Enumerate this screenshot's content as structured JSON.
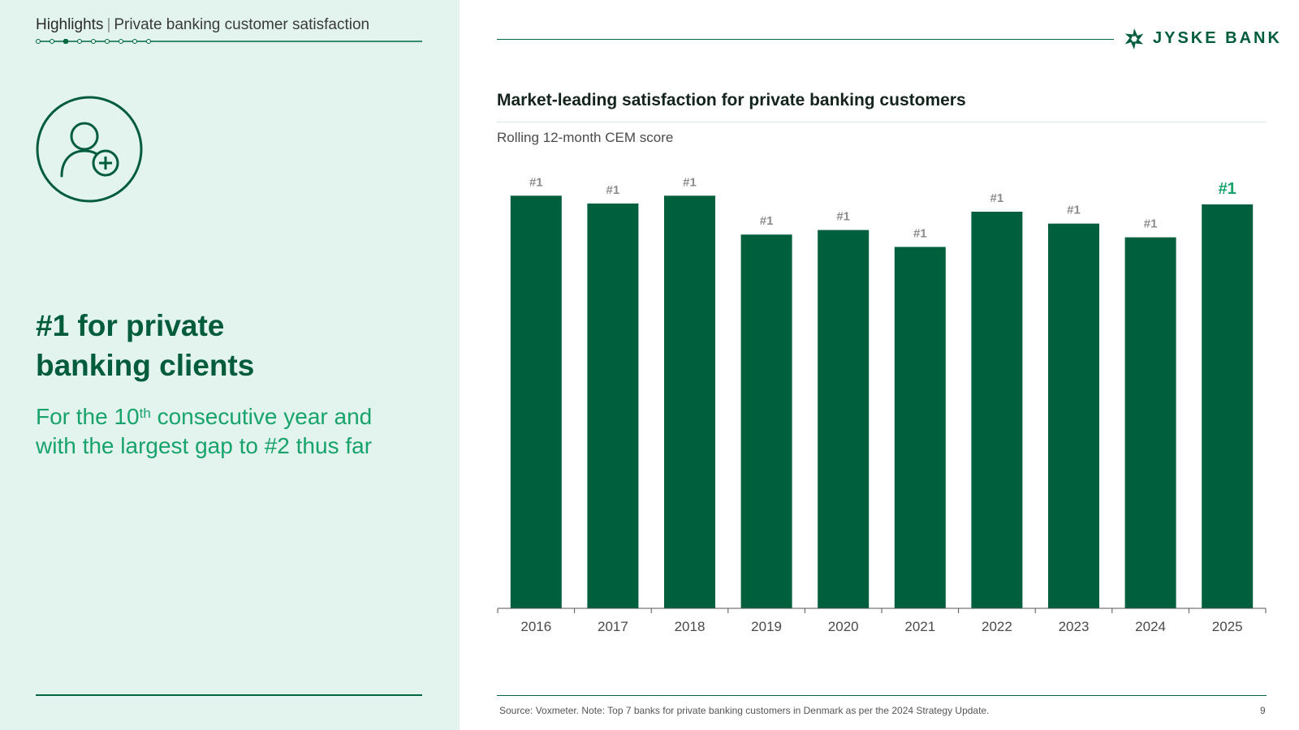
{
  "breadcrumb": {
    "section": "Highlights",
    "separator": "|",
    "page": "Private banking customer satisfaction"
  },
  "hero": {
    "headline_line1": "#1 for private",
    "headline_line2": "banking clients",
    "sub_line1_a": "For the 10",
    "sub_line1_sup": "th",
    "sub_line1_b": " consecutive year and",
    "sub_line2": "with the largest gap to #2 thus far"
  },
  "brand": {
    "name": "JYSKE BANK",
    "logo_icon": "jyske-bank-logo-icon",
    "user_icon": "user-add-icon",
    "accent": "#005c3b",
    "panel_bg": "#e3f4ee",
    "highlight": "#17a36b"
  },
  "chart_data": {
    "type": "bar",
    "title": "Market-leading satisfaction for private banking customers",
    "subtitle": "Rolling 12-month CEM score",
    "categories": [
      "2016",
      "2017",
      "2018",
      "2019",
      "2020",
      "2021",
      "2022",
      "2023",
      "2024",
      "2025"
    ],
    "values": [
      90.2,
      88.5,
      90.2,
      81.7,
      82.7,
      79.0,
      86.7,
      84.1,
      81.1,
      88.3
    ],
    "labels": [
      "#1",
      "#1",
      "#1",
      "#1",
      "#1",
      "#1",
      "#1",
      "#1",
      "#1",
      "#1"
    ],
    "highlight_index": 9,
    "ylim": [
      0,
      100
    ],
    "bar_color": "#005f3d",
    "grid": false,
    "legend": "none"
  },
  "footer": {
    "source": "Source: Voxmeter. Note: Top 7 banks for private banking customers in Denmark as per the 2024 Strategy Update.",
    "page_number": "9"
  }
}
